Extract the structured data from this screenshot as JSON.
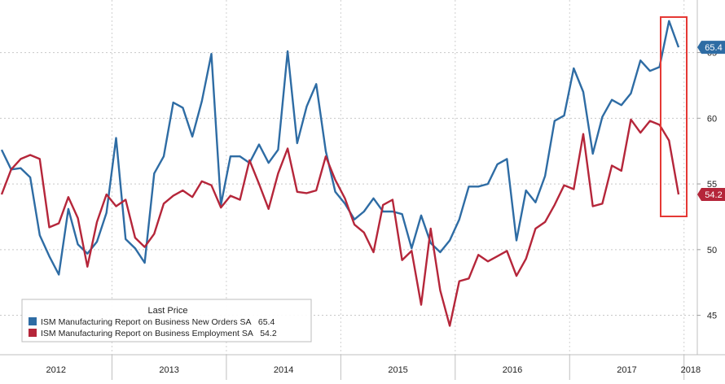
{
  "chart_data": {
    "type": "line",
    "x_labels": [
      "2012",
      "2013",
      "2014",
      "2015",
      "2016",
      "2017",
      "2018"
    ],
    "y_ticks": [
      45,
      50,
      55,
      60,
      65
    ],
    "ylim": [
      42,
      69
    ],
    "grid": true,
    "legend": {
      "title": "Last Price",
      "placement": "bottom-left"
    },
    "series": [
      {
        "name": "ISM Manufacturing Report on Business New Orders SA",
        "last_value": "65.4",
        "color": "#2e6ca4",
        "values": [
          57.6,
          56.1,
          56.2,
          55.5,
          51.1,
          49.5,
          48.1,
          53.1,
          50.4,
          49.7,
          50.6,
          52.8,
          58.5,
          50.8,
          50.1,
          49.0,
          55.8,
          57.1,
          61.2,
          60.8,
          58.6,
          61.3,
          64.9,
          53.4,
          57.1,
          57.1,
          56.6,
          58.0,
          56.6,
          57.6,
          65.1,
          58.1,
          60.9,
          62.6,
          57.5,
          54.4,
          53.5,
          52.3,
          52.9,
          53.9,
          52.9,
          52.9,
          52.7,
          50.1,
          52.6,
          50.5,
          49.8,
          50.7,
          52.3,
          54.8,
          54.8,
          55.0,
          56.5,
          56.9,
          50.7,
          54.5,
          53.6,
          55.6,
          59.8,
          60.2,
          63.8,
          62.0,
          57.3,
          60.1,
          61.4,
          61.0,
          61.9,
          64.4,
          63.6,
          63.9,
          67.4,
          65.4
        ]
      },
      {
        "name": "ISM Manufacturing Report on Business Employment SA",
        "last_value": "54.2",
        "color": "#b5263a",
        "values": [
          54.2,
          56.1,
          56.9,
          57.2,
          56.9,
          51.7,
          52.0,
          54.0,
          52.4,
          48.7,
          52.1,
          54.2,
          53.3,
          53.8,
          50.9,
          50.2,
          51.2,
          53.5,
          54.1,
          54.5,
          54.0,
          55.2,
          54.9,
          53.2,
          54.1,
          53.8,
          56.8,
          55.0,
          53.1,
          55.8,
          57.7,
          54.4,
          54.3,
          54.5,
          57.1,
          55.3,
          53.9,
          51.9,
          51.3,
          49.8,
          53.4,
          53.8,
          49.2,
          49.9,
          45.8,
          51.6,
          46.9,
          44.2,
          47.6,
          47.8,
          49.6,
          49.1,
          49.5,
          49.9,
          48.0,
          49.3,
          51.6,
          52.1,
          53.4,
          54.9,
          54.6,
          58.8,
          53.3,
          53.5,
          56.4,
          56.0,
          59.9,
          58.9,
          59.8,
          59.5,
          58.3,
          54.2
        ]
      }
    ]
  }
}
